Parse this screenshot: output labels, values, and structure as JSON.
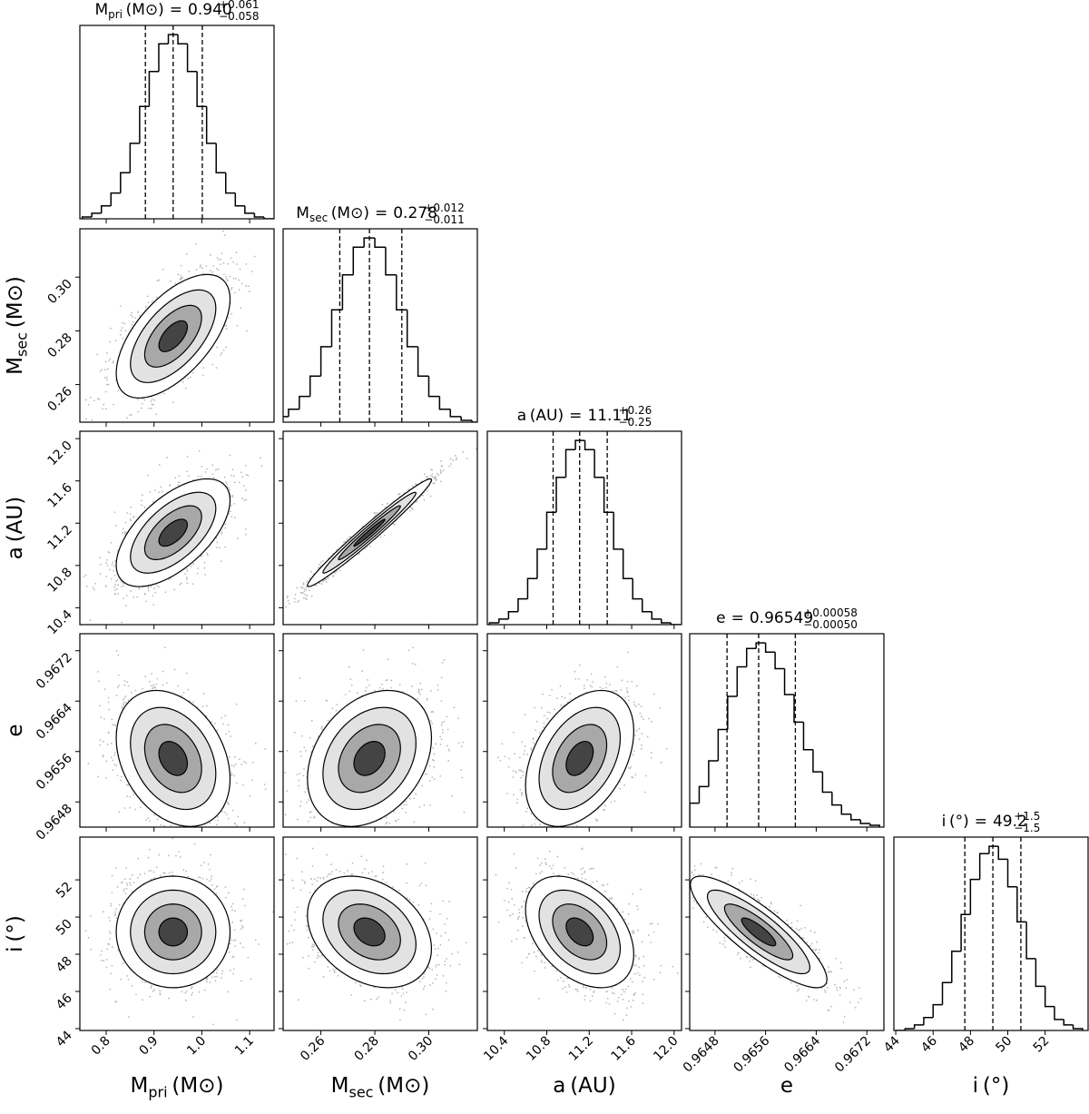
{
  "chart_data": {
    "type": "corner",
    "title_sep": "=",
    "hist_ylim": [
      0,
      105
    ],
    "params": [
      {
        "symbol": "M",
        "sub": "pri",
        "unit": "(M⊙)",
        "lim": [
          0.745,
          1.151
        ],
        "ticks": [
          0.8,
          0.9,
          {
            "value": 1,
            "label": "1.0"
          },
          1.1
        ],
        "bins": [
          0.75,
          0.77,
          0.79,
          0.81,
          0.83,
          0.85,
          0.87,
          0.89,
          0.91,
          0.93,
          0.95,
          0.97,
          0.99,
          1.01,
          1.03,
          1.05,
          1.07,
          1.09,
          1.11,
          1.13,
          1.15
        ],
        "counts": [
          1,
          3,
          7,
          14,
          25,
          41,
          61,
          80,
          95,
          100,
          95,
          80,
          61,
          41,
          25,
          14,
          7,
          3,
          1,
          0
        ],
        "quantiles": [
          0.882,
          0.94,
          1.001
        ],
        "title": {
          "value": "0.940",
          "plus": "+0.061",
          "minus": "−0.058"
        }
      },
      {
        "symbol": "M",
        "sub": "sec",
        "unit": "(M⊙)",
        "lim": [
          0.246,
          0.318
        ],
        "ticks": [
          0.26,
          0.28,
          {
            "value": 0.3,
            "label": "0.30"
          }
        ],
        "bins": [
          0.24,
          0.244,
          0.248,
          0.252,
          0.256,
          0.26,
          0.264,
          0.268,
          0.272,
          0.276,
          0.28,
          0.284,
          0.288,
          0.292,
          0.296,
          0.3,
          0.304,
          0.308,
          0.312,
          0.316,
          0.32
        ],
        "counts": [
          1,
          3,
          7,
          14,
          25,
          41,
          61,
          80,
          95,
          100,
          95,
          80,
          61,
          41,
          25,
          14,
          7,
          3,
          1,
          0
        ],
        "quantiles": [
          0.267,
          0.278,
          0.29
        ],
        "title": {
          "value": "0.278",
          "plus": "+0.012",
          "minus": "−0.011"
        }
      },
      {
        "symbol": "a",
        "unit": "(AU)",
        "lim": [
          10.24,
          12.07
        ],
        "ticks": [
          10.4,
          10.8,
          11.2,
          11.6,
          {
            "value": 12,
            "label": "12.0"
          }
        ],
        "bins": [
          10.26,
          10.35,
          10.44,
          10.53,
          10.62,
          10.71,
          10.8,
          10.89,
          10.98,
          11.07,
          11.16,
          11.25,
          11.34,
          11.43,
          11.52,
          11.61,
          11.7,
          11.79,
          11.88,
          11.97,
          12.06
        ],
        "counts": [
          1,
          3,
          7,
          14,
          25,
          41,
          61,
          80,
          95,
          100,
          95,
          80,
          61,
          41,
          25,
          14,
          7,
          3,
          1,
          0
        ],
        "quantiles": [
          10.86,
          11.11,
          11.37
        ],
        "title": {
          "value": "11.11",
          "plus": "+0.26",
          "minus": "−0.25"
        }
      },
      {
        "symbol": "e",
        "lim": [
          0.9644,
          0.96747
        ],
        "ticks": [
          0.9648,
          0.9656,
          0.9664,
          0.9672
        ],
        "bins": [
          0.9644,
          0.96455,
          0.9647,
          0.96485,
          0.965,
          0.96515,
          0.9653,
          0.96545,
          0.9656,
          0.96575,
          0.9659,
          0.96605,
          0.9662,
          0.96635,
          0.9665,
          0.96665,
          0.9668,
          0.96695,
          0.9671,
          0.96725,
          0.9674
        ],
        "counts": [
          13,
          22,
          36,
          53,
          71,
          87,
          97,
          100,
          95,
          86,
          72,
          57,
          42,
          30,
          19,
          12,
          7,
          4,
          2,
          1
        ],
        "quantiles": [
          0.96499,
          0.96549,
          0.96607
        ],
        "title": {
          "value": "0.96549",
          "plus": "+0.00058",
          "minus": "−0.00050"
        }
      },
      {
        "symbol": "i",
        "unit": "(°)",
        "lim": [
          43.9,
          54.3
        ],
        "ticks": [
          44,
          46,
          48,
          50,
          52
        ],
        "bins": [
          44,
          44.5,
          45,
          45.5,
          46,
          46.5,
          47,
          47.5,
          48,
          48.5,
          49,
          49.5,
          50,
          50.5,
          51,
          51.5,
          52,
          52.5,
          53,
          53.5,
          54
        ],
        "counts": [
          0,
          1,
          3,
          7,
          14,
          26,
          43,
          63,
          82,
          96,
          100,
          93,
          78,
          59,
          39,
          24,
          13,
          6,
          3,
          1
        ],
        "quantiles": [
          47.7,
          49.2,
          50.7
        ],
        "title": {
          "value": "49.2",
          "plus": "+1.5",
          "minus": "−1.5"
        }
      }
    ],
    "pairs": [
      {
        "x": 0,
        "y": 1,
        "rho": 0.6
      },
      {
        "x": 0,
        "y": 2,
        "rho": 0.6
      },
      {
        "x": 1,
        "y": 2,
        "rho": 0.98
      },
      {
        "x": 0,
        "y": 3,
        "rho": -0.3
      },
      {
        "x": 1,
        "y": 3,
        "rho": 0.3
      },
      {
        "x": 2,
        "y": 3,
        "rho": 0.4
      },
      {
        "x": 0,
        "y": 4,
        "rho": 0
      },
      {
        "x": 1,
        "y": 4,
        "rho": -0.3
      },
      {
        "x": 2,
        "y": 4,
        "rho": -0.4
      },
      {
        "x": 3,
        "y": 4,
        "rho": -0.85
      }
    ]
  }
}
